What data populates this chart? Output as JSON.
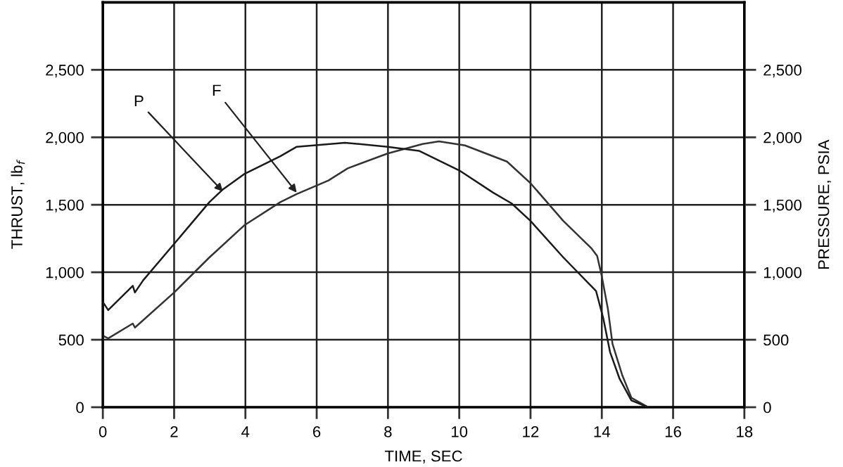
{
  "chart_data": {
    "type": "line",
    "xlabel": "TIME, SEC",
    "ylabel": "THRUST, lb$_{f}$",
    "y2label": "PRESSURE, PSIA",
    "xlim": [
      0,
      18
    ],
    "xticks": [
      0,
      2,
      4,
      6,
      8,
      10,
      12,
      14,
      16,
      18
    ],
    "ylim": [
      0,
      3000
    ],
    "yticks": [
      0,
      500,
      {
        "value": 1000,
        "label": "1,000"
      },
      {
        "value": 1500,
        "label": "1,500"
      },
      {
        "value": 2000,
        "label": "2,000"
      },
      {
        "value": 2500,
        "label": "2,500"
      }
    ],
    "y2lim": [
      0,
      3000
    ],
    "y2ticks": [
      0,
      500,
      {
        "value": 1000,
        "label": "1,000"
      },
      {
        "value": 1500,
        "label": "1,500"
      },
      {
        "value": 2000,
        "label": "2,000"
      },
      {
        "value": 2500,
        "label": "2,500"
      }
    ],
    "grid": true,
    "marker": "none",
    "line_style": "solid",
    "series": [
      {
        "color": "#1a1a1a",
        "axis": "y2",
        "x": [
          0,
          0,
          0.15,
          0.84,
          0.9,
          1.13,
          2.0,
          2.99,
          3.35,
          3.98,
          4.98,
          5.44,
          6.79,
          7.99,
          8.87,
          10.03,
          10.95,
          11.47,
          12.0,
          12.92,
          13.84,
          14.04,
          14.23,
          14.5,
          14.83,
          15.3
        ],
        "values": [
          0,
          780,
          720,
          900,
          850,
          940,
          1210,
          1520,
          1610,
          1730,
          1860,
          1930,
          1960,
          1930,
          1900,
          1750,
          1590,
          1510,
          1380,
          1110,
          860,
          660,
          410,
          210,
          50,
          0
        ]
      },
      {
        "color": "#333333",
        "x": [
          0,
          0,
          0.15,
          0.84,
          0.9,
          2.0,
          2.99,
          3.98,
          4.98,
          5.44,
          6.33,
          6.87,
          7.99,
          8.97,
          9.43,
          10.16,
          11.34,
          12.0,
          12.92,
          13.7,
          13.87,
          14.0,
          14.17,
          14.3,
          14.57,
          14.83,
          15.3
        ],
        "values": [
          0,
          530,
          510,
          620,
          590,
          850,
          1110,
          1350,
          1520,
          1580,
          1680,
          1770,
          1880,
          1950,
          1970,
          1940,
          1820,
          1660,
          1380,
          1180,
          1120,
          970,
          730,
          470,
          240,
          70,
          0
        ]
      }
    ],
    "annotations": [
      {
        "text": "P",
        "x": 3.37,
        "y": 1598
      },
      {
        "text": "F",
        "x": 5.44,
        "y": 1590
      }
    ]
  }
}
